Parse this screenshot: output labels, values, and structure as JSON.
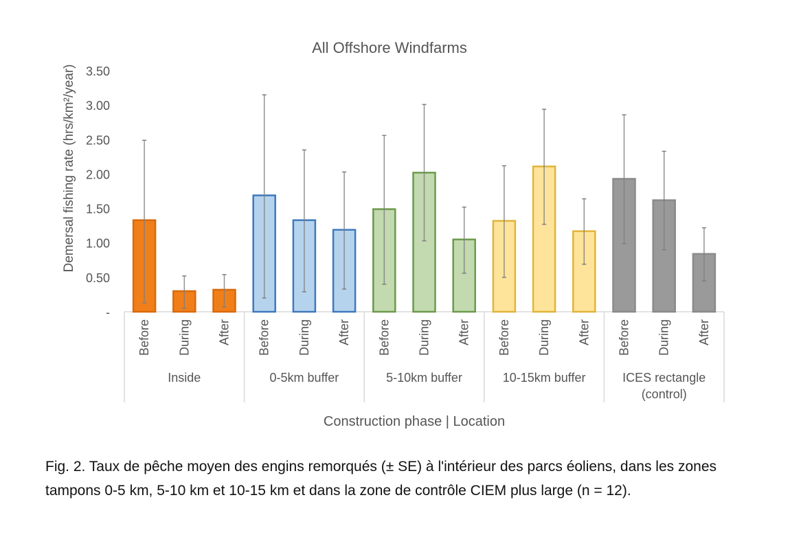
{
  "chart_data": {
    "type": "bar",
    "title": "All Offshore Windfarms",
    "xlabel": "Construction phase | Location",
    "ylabel": "Demersal fishing rate (hrs/km²/year)",
    "ylim": [
      0,
      3.5
    ],
    "yticks": [
      "-",
      "0.50",
      "1.00",
      "1.50",
      "2.00",
      "2.50",
      "3.00",
      "3.50"
    ],
    "grid": false,
    "legend": "none",
    "error_bars": "± SE",
    "groups": [
      {
        "name": "Inside",
        "color": "#F07F1A",
        "edge": "#D9690C",
        "bars": [
          {
            "phase": "Before",
            "value": 1.33,
            "err_low": 0.13,
            "err_high": 2.49
          },
          {
            "phase": "During",
            "value": 0.3,
            "err_low": 0.05,
            "err_high": 0.52
          },
          {
            "phase": "After",
            "value": 0.32,
            "err_low": 0.07,
            "err_high": 0.54
          }
        ]
      },
      {
        "name": "0-5km buffer",
        "color": "#B6D3EE",
        "edge": "#3E79BD",
        "bars": [
          {
            "phase": "Before",
            "value": 1.69,
            "err_low": 0.2,
            "err_high": 3.15
          },
          {
            "phase": "During",
            "value": 1.33,
            "err_low": 0.29,
            "err_high": 2.35
          },
          {
            "phase": "After",
            "value": 1.19,
            "err_low": 0.33,
            "err_high": 2.03
          }
        ]
      },
      {
        "name": "5-10km buffer",
        "color": "#C3D9AF",
        "edge": "#6B9A4B",
        "bars": [
          {
            "phase": "Before",
            "value": 1.49,
            "err_low": 0.4,
            "err_high": 2.56
          },
          {
            "phase": "During",
            "value": 2.02,
            "err_low": 1.03,
            "err_high": 3.01
          },
          {
            "phase": "After",
            "value": 1.05,
            "err_low": 0.56,
            "err_high": 1.52
          }
        ]
      },
      {
        "name": "10-15km buffer",
        "color": "#FDE49A",
        "edge": "#E1B43A",
        "bars": [
          {
            "phase": "Before",
            "value": 1.32,
            "err_low": 0.5,
            "err_high": 2.12
          },
          {
            "phase": "During",
            "value": 2.11,
            "err_low": 1.27,
            "err_high": 2.94
          },
          {
            "phase": "After",
            "value": 1.17,
            "err_low": 0.69,
            "err_high": 1.64
          }
        ]
      },
      {
        "name": "ICES rectangle (control)",
        "name_lines": [
          "ICES rectangle",
          "(control)"
        ],
        "color": "#9A9A9A",
        "edge": "#8A8A8A",
        "bars": [
          {
            "phase": "Before",
            "value": 1.93,
            "err_low": 0.99,
            "err_high": 2.86
          },
          {
            "phase": "During",
            "value": 1.62,
            "err_low": 0.9,
            "err_high": 2.33
          },
          {
            "phase": "After",
            "value": 0.84,
            "err_low": 0.45,
            "err_high": 1.22
          }
        ]
      }
    ]
  },
  "caption": {
    "text": "Fig. 2. Taux de pêche moyen des engins remorqués (± SE) à l'intérieur des parcs éoliens, dans les zones tampons 0-5 km, 5-10 km et 10-15 km et dans la zone de contrôle CIEM plus large (n = 12)."
  }
}
